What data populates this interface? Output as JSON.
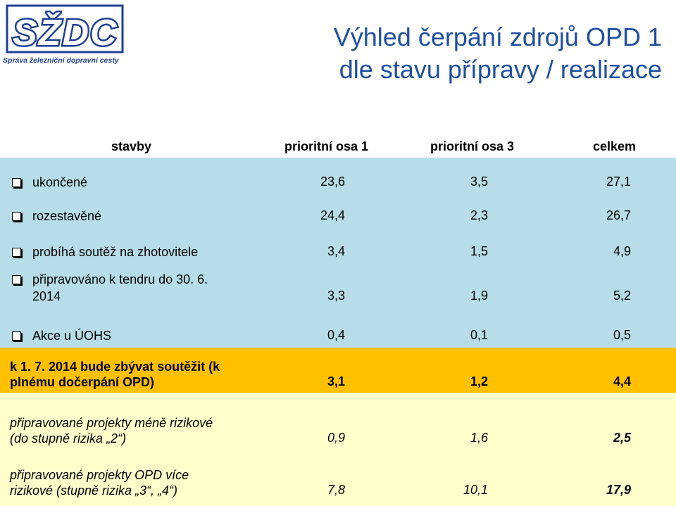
{
  "logo": {
    "text": "SŽDC",
    "subtitle": "Správa železniční dopravní cesty",
    "color": "#1f3f94"
  },
  "title": {
    "line1": "Výhled čerpání zdrojů OPD 1",
    "line2": "dle stavu přípravy / realizace",
    "color": "#1f4fa0"
  },
  "table": {
    "headers": [
      "stavby",
      "prioritní osa 1",
      "prioritní osa 3",
      "celkem"
    ],
    "rows": [
      {
        "label": "ukončené",
        "v1": "23,6",
        "v2": "3,5",
        "v3": "27,1"
      },
      {
        "label": "rozestavěné",
        "v1": "24,4",
        "v2": "2,3",
        "v3": "26,7"
      },
      {
        "label": "probíhá soutěž na zhotovitele",
        "v1": "3,4",
        "v2": "1,5",
        "v3": "4,9"
      },
      {
        "label_line1": "připravováno k tendru do 30. 6.",
        "label_line2": "2014",
        "v1": "3,3",
        "v2": "1,9",
        "v3": "5,2"
      },
      {
        "label": "Akce u ÚOHS",
        "v1": "0,4",
        "v2": "0,1",
        "v3": "0,5"
      }
    ],
    "summary": {
      "label_line1": "k 1. 7. 2014 bude zbývat soutěžit (k",
      "label_line2": "plnému dočerpání OPD)",
      "v1": "3,1",
      "v2": "1,2",
      "v3": "4,4"
    },
    "risk_rows": [
      {
        "label_line1": "připravované  projekty méně rizikové",
        "label_line2": "(do stupně rizika „2“)",
        "v1": "0,9",
        "v2": "1,6",
        "v3": "2,5"
      },
      {
        "label_line1": "připravované projekty OPD více",
        "label_line2": "rizikové (stupně rizika „3“, „4“)",
        "v1": "7,8",
        "v2": "10,1",
        "v3": "17,9"
      }
    ]
  },
  "colors": {
    "blue_band": "#b7dde8",
    "orange_band": "#ffc000",
    "yellow_band": "#ffffcc"
  }
}
